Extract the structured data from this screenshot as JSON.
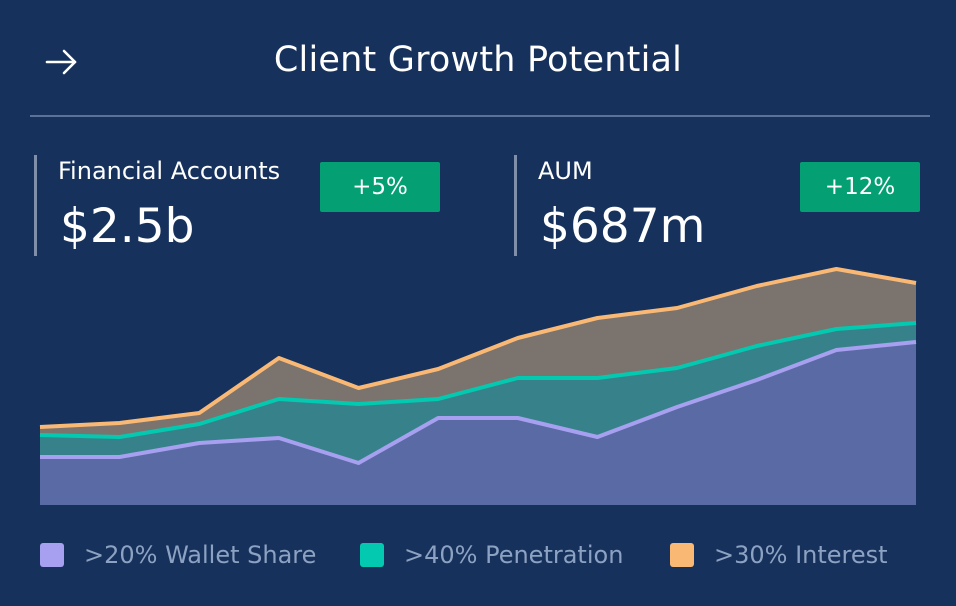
{
  "header": {
    "title": "Client Growth Potential",
    "back_icon": "arrow-right-icon"
  },
  "metrics": [
    {
      "label": "Financial Accounts",
      "value": "$2.5b",
      "change": "+5%"
    },
    {
      "label": "AUM",
      "value": "$687m",
      "change": "+12%"
    }
  ],
  "colors": {
    "background": "#16325c",
    "positive_badge": "#04a073",
    "wallet_share": "#a79ff0",
    "penetration": "#03c9b0",
    "interest": "#f9b874"
  },
  "legend": [
    {
      "label": ">20% Wallet Share",
      "color": "#a79ff0"
    },
    {
      "label": ">40% Penetration",
      "color": "#03c9b0"
    },
    {
      "label": ">30% Interest",
      "color": "#f9b874"
    }
  ],
  "chart_data": {
    "type": "area",
    "stacked": true,
    "title": "",
    "xlabel": "",
    "ylabel": "",
    "grid": false,
    "legend_position": "bottom",
    "x": [
      1,
      2,
      3,
      4,
      5,
      6,
      7,
      8,
      9,
      10,
      11,
      12
    ],
    "ylim": [
      0,
      225
    ],
    "series": [
      {
        "name": ">20% Wallet Share",
        "color": "#a79ff0",
        "values": [
          48,
          48,
          62,
          67,
          42,
          87,
          87,
          68,
          98,
          125,
          155,
          163
        ]
      },
      {
        "name": ">40% Penetration",
        "color": "#03c9b0",
        "values": [
          22,
          20,
          19,
          39,
          59,
          19,
          40,
          59,
          39,
          34,
          21,
          19
        ]
      },
      {
        "name": ">30% Interest",
        "color": "#f9b874",
        "values": [
          8,
          14,
          11,
          41,
          16,
          30,
          40,
          60,
          60,
          60,
          60,
          40
        ]
      }
    ]
  }
}
